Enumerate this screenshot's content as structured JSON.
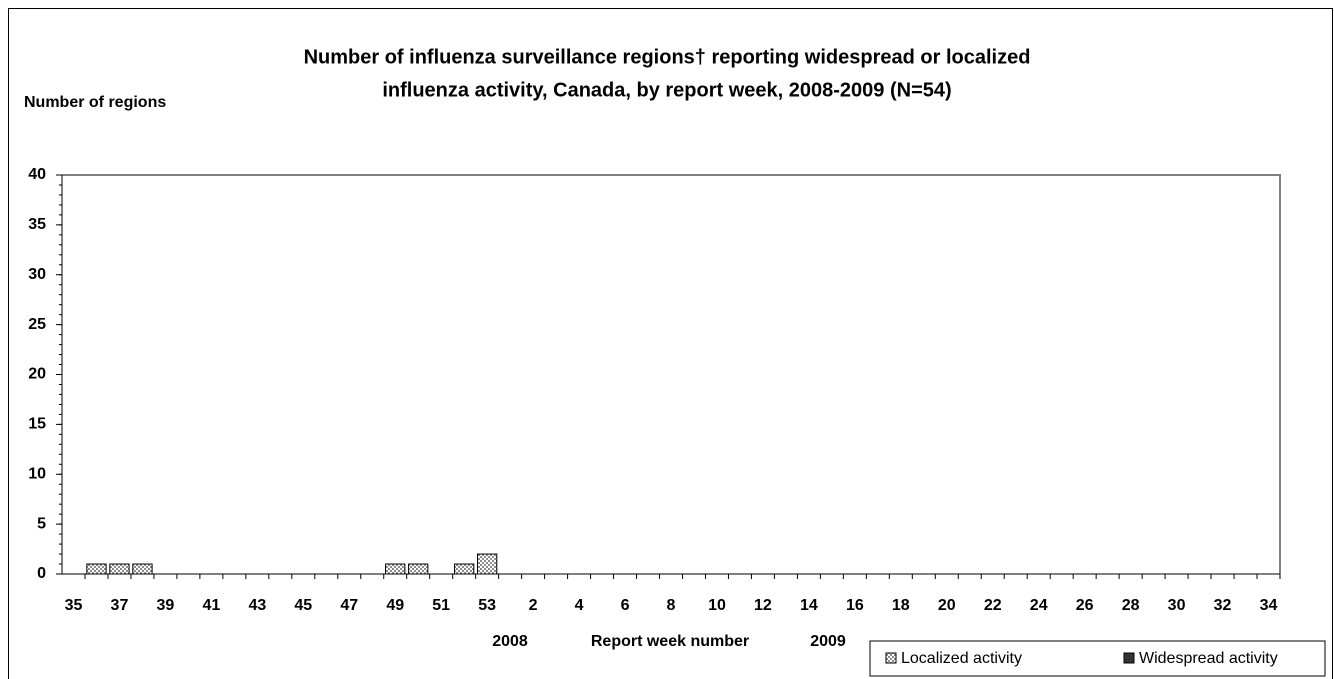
{
  "chart_data": {
    "type": "stacked_bar",
    "title": [
      "Number of influenza surveillance regions† reporting widespread or localized",
      "influenza activity, Canada, by report week, 2008-2009 (N=54)"
    ],
    "y_label": "Number of regions",
    "x_label": "Report week number",
    "year_labels": [
      "2008",
      "2009"
    ],
    "categories": [
      "35",
      null,
      "37",
      null,
      "39",
      null,
      "41",
      null,
      "43",
      null,
      "45",
      null,
      "47",
      null,
      "49",
      null,
      "51",
      null,
      "53",
      null,
      "2",
      null,
      "4",
      null,
      "6",
      null,
      "8",
      null,
      "10",
      null,
      "12",
      null,
      "14",
      null,
      "16",
      null,
      "18",
      null,
      "20",
      null,
      "22",
      null,
      "24",
      null,
      "26",
      null,
      "28",
      null,
      "30",
      null,
      "32",
      null,
      "34"
    ],
    "series": [
      {
        "name": "Localized activity",
        "color": "#8c8c8c",
        "pattern": "checker",
        "values": [
          0,
          1,
          1,
          1,
          0,
          0,
          0,
          0,
          0,
          0,
          0,
          0,
          0,
          0,
          1,
          1,
          0,
          1,
          2,
          0,
          0,
          0,
          0,
          0,
          0,
          0,
          0,
          0,
          0,
          0,
          0,
          0,
          0,
          0,
          0,
          0,
          0,
          0,
          0,
          0,
          0,
          0,
          0,
          0,
          0,
          0,
          0,
          0,
          0,
          0,
          0,
          0,
          0
        ]
      },
      {
        "name": "Widespread activity",
        "color": "#333333",
        "values": [
          0,
          0,
          0,
          0,
          0,
          0,
          0,
          0,
          0,
          0,
          0,
          0,
          0,
          0,
          0,
          0,
          0,
          0,
          0,
          0,
          0,
          0,
          0,
          0,
          0,
          0,
          0,
          0,
          0,
          0,
          0,
          0,
          0,
          0,
          0,
          0,
          0,
          0,
          0,
          0,
          0,
          0,
          0,
          0,
          0,
          0,
          0,
          0,
          0,
          0,
          0,
          0,
          0
        ]
      }
    ],
    "ylim": [
      0,
      40
    ],
    "yticks": [
      0,
      5,
      10,
      15,
      20,
      25,
      30,
      35,
      40
    ],
    "grid": false,
    "legend": "bottom-right"
  }
}
